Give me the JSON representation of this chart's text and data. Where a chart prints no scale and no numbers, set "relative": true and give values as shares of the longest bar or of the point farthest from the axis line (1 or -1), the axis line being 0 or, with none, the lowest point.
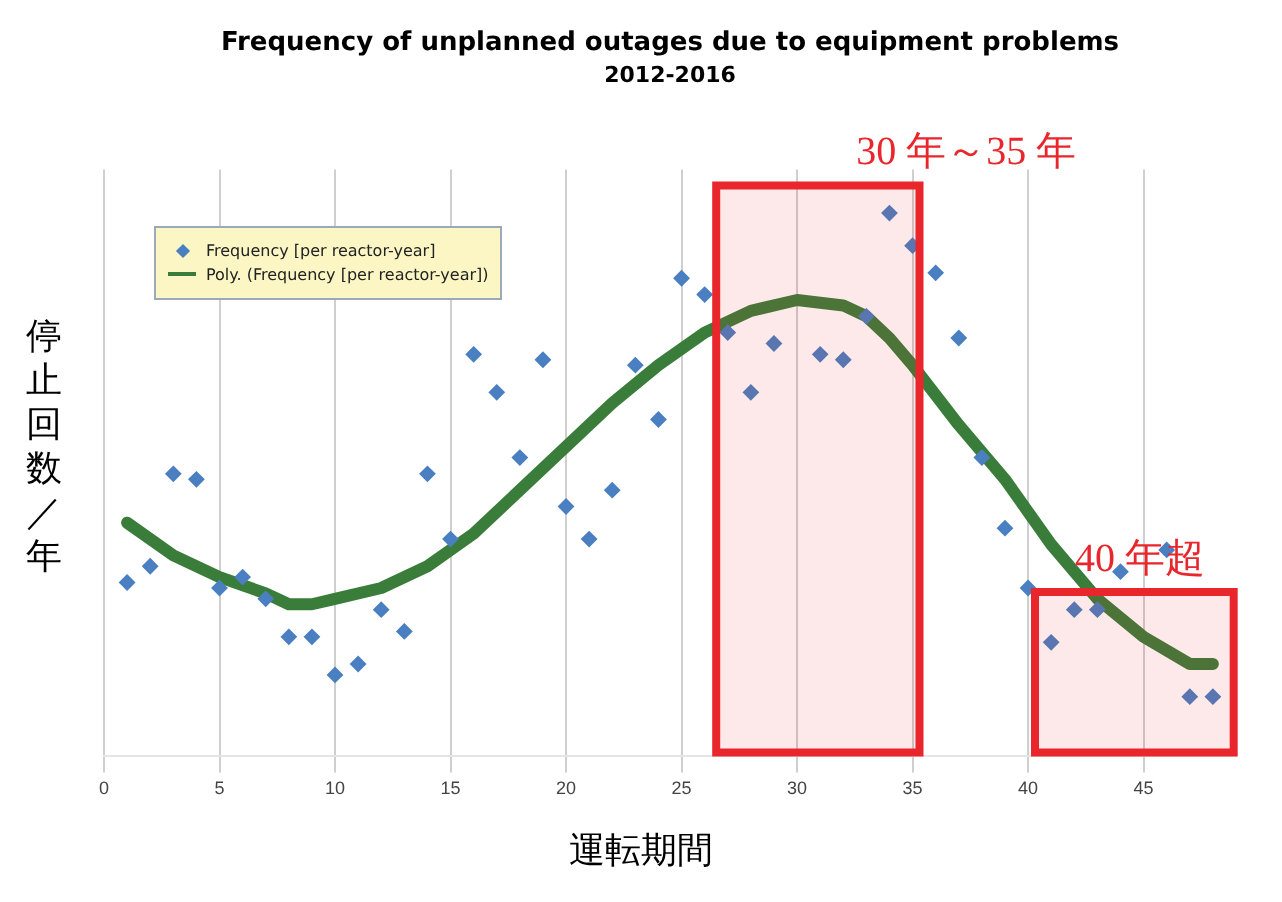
{
  "chart_data": {
    "type": "scatter",
    "title": "Frequency of unplanned outages due to equipment problems",
    "subtitle": "2012-2016",
    "xlabel": "運転期間",
    "ylabel": "停止回数／年",
    "relative": true,
    "grid": "x",
    "legend": "top left",
    "marker": "diamond",
    "xlim": [
      0,
      49
    ],
    "xticks": [
      0,
      5,
      10,
      15,
      20,
      25,
      30,
      35,
      40,
      45
    ],
    "x": [
      1,
      2,
      3,
      4,
      5,
      6,
      7,
      8,
      9,
      10,
      11,
      12,
      13,
      14,
      15,
      16,
      17,
      18,
      19,
      20,
      21,
      22,
      23,
      24,
      25,
      26,
      27,
      28,
      29,
      30,
      31,
      32,
      33,
      34,
      35,
      36,
      37,
      38,
      39,
      40,
      41,
      42,
      43,
      44,
      45,
      46,
      47,
      48
    ],
    "bands": [
      {
        "axis": "x",
        "from": 26.5,
        "to": 35.3,
        "label": "30 年～35 年",
        "color": "#e8262b"
      },
      {
        "axis": "x",
        "from": 40.3,
        "to": 48.9,
        "label": "40 年超",
        "color": "#e8262b"
      }
    ],
    "series": [
      {
        "name": "Frequency [per reactor-year]",
        "color": "#4a7fc1",
        "values": [
          0.32,
          0.35,
          0.52,
          0.51,
          0.31,
          0.33,
          0.29,
          0.22,
          0.22,
          0.15,
          0.17,
          0.27,
          0.23,
          0.52,
          0.4,
          0.74,
          0.67,
          0.55,
          0.73,
          0.46,
          0.4,
          0.49,
          0.72,
          0.62,
          0.88,
          0.85,
          0.78,
          0.67,
          0.76,
          null,
          0.74,
          0.73,
          0.81,
          1,
          0.94,
          0.89,
          0.77,
          0.55,
          0.42,
          0.31,
          0.21,
          0.27,
          0.27,
          0.34,
          null,
          0.38,
          0.11,
          0.11
        ]
      },
      {
        "name": "Poly. (Frequency [per reactor-year])",
        "type": "line",
        "color": "#3a7d3a",
        "line_style": "solid",
        "marker": "none",
        "x": [
          1,
          3,
          5,
          7,
          8,
          9,
          10,
          12,
          14,
          16,
          18,
          20,
          22,
          24,
          26,
          28,
          30,
          32,
          33,
          34,
          35,
          37,
          39,
          41,
          43,
          45,
          47,
          48
        ],
        "values": [
          0.43,
          0.37,
          0.33,
          0.3,
          0.28,
          0.28,
          0.29,
          0.31,
          0.35,
          0.41,
          0.49,
          0.57,
          0.65,
          0.72,
          0.78,
          0.82,
          0.84,
          0.83,
          0.81,
          0.77,
          0.72,
          0.61,
          0.51,
          0.39,
          0.29,
          0.22,
          0.17,
          0.17
        ]
      }
    ]
  }
}
